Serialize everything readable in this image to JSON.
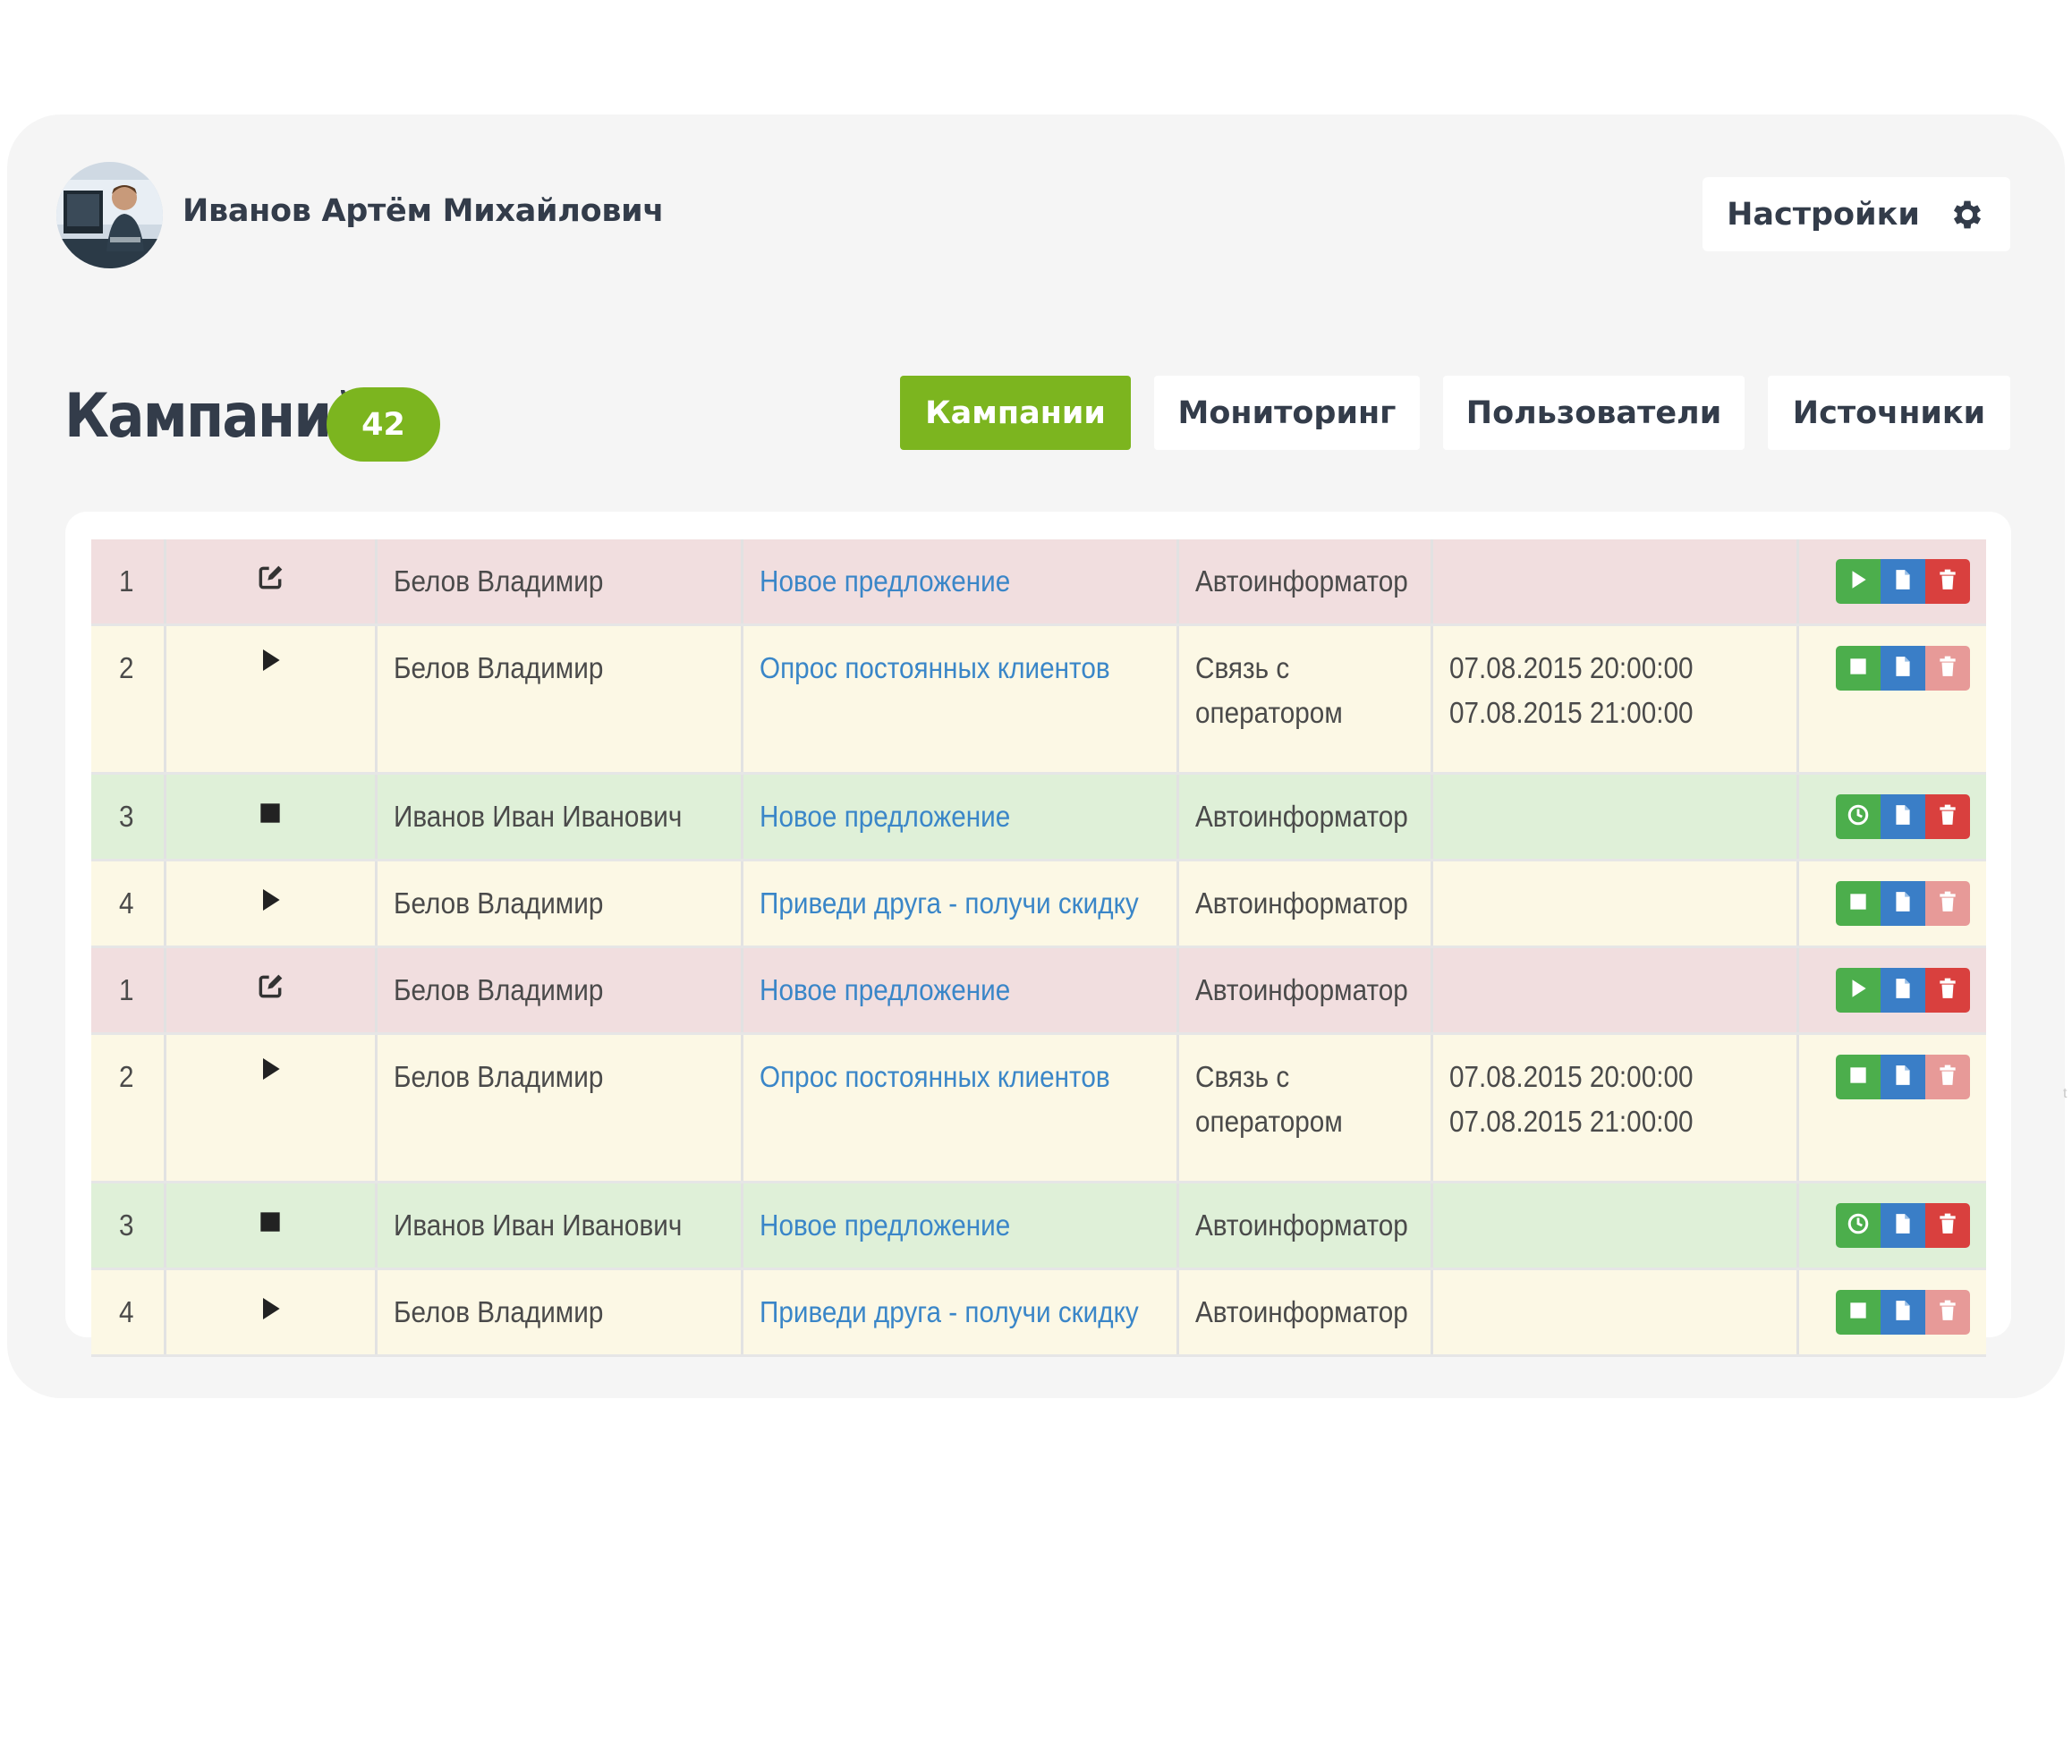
{
  "user": {
    "name": "Иванов Артём Михайлович"
  },
  "settings": {
    "label": "Настройки"
  },
  "page": {
    "title": "Кампаний",
    "count": "42"
  },
  "tabs": [
    {
      "label": "Кампании",
      "active": true
    },
    {
      "label": "Мониторинг",
      "active": false
    },
    {
      "label": "Пользователи",
      "active": false
    },
    {
      "label": "Источники",
      "active": false
    }
  ],
  "colors": {
    "accent": "#7cb51f",
    "link": "#3a86c8",
    "row_pink": "#f1dedf",
    "row_yellow": "#fcf8e5",
    "row_green": "#dff0d8"
  },
  "rows": [
    {
      "num": "1",
      "status": "edit-icon",
      "owner": "Белов Владимир",
      "campaign": "Новое предложение",
      "type": "Автоинформатор",
      "type2": "",
      "time1": "",
      "time2": "",
      "first_action": "play-icon",
      "delete_faded": false
    },
    {
      "num": "2",
      "status": "play-icon",
      "owner": "Белов Владимир",
      "campaign": "Опрос постоянных клиентов",
      "type": "Связь с",
      "type2": "оператором",
      "time1": "07.08.2015 20:00:00",
      "time2": "07.08.2015 21:00:00",
      "first_action": "stop-icon",
      "delete_faded": true
    },
    {
      "num": "3",
      "status": "stop-icon",
      "owner": "Иванов Иван Иванович",
      "campaign": "Новое предложение",
      "type": "Автоинформатор",
      "type2": "",
      "time1": "",
      "time2": "",
      "first_action": "clock-icon",
      "delete_faded": false
    },
    {
      "num": "4",
      "status": "play-icon",
      "owner": "Белов Владимир",
      "campaign": "Приведи друга - получи скидку",
      "type": "Автоинформатор",
      "type2": "",
      "time1": "",
      "time2": "",
      "first_action": "stop-icon",
      "delete_faded": true
    },
    {
      "num": "1",
      "status": "edit-icon",
      "owner": "Белов Владимир",
      "campaign": "Новое предложение",
      "type": "Автоинформатор",
      "type2": "",
      "time1": "",
      "time2": "",
      "first_action": "play-icon",
      "delete_faded": false
    },
    {
      "num": "2",
      "status": "play-icon",
      "owner": "Белов Владимир",
      "campaign": "Опрос постоянных клиентов",
      "type": "Связь с",
      "type2": "оператором",
      "time1": "07.08.2015 20:00:00",
      "time2": "07.08.2015 21:00:00",
      "first_action": "stop-icon",
      "delete_faded": true
    },
    {
      "num": "3",
      "status": "stop-icon",
      "owner": "Иванов Иван Иванович",
      "campaign": "Новое предложение",
      "type": "Автоинформатор",
      "type2": "",
      "time1": "",
      "time2": "",
      "first_action": "clock-icon",
      "delete_faded": false
    },
    {
      "num": "4",
      "status": "play-icon",
      "owner": "Белов Владимир",
      "campaign": "Приведи друга - получи скидку",
      "type": "Автоинформатор",
      "type2": "",
      "time1": "",
      "time2": "",
      "first_action": "stop-icon",
      "delete_faded": true
    }
  ]
}
